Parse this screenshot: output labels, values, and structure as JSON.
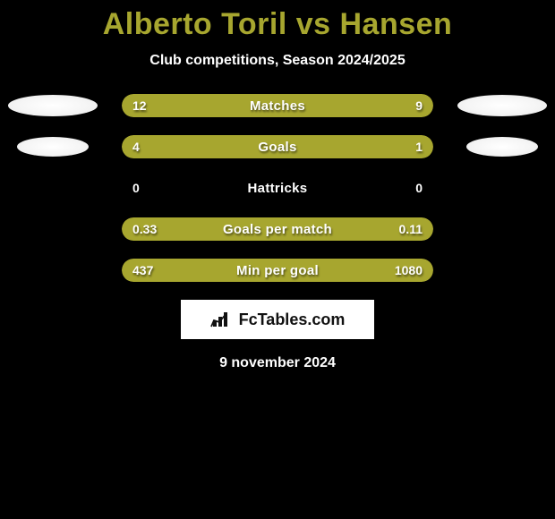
{
  "title": "Alberto Toril vs Hansen",
  "subtitle": "Club competitions, Season 2024/2025",
  "date": "9 november 2024",
  "brand": "FcTables.com",
  "colors": {
    "accent": "#a7a62f",
    "bg": "#000000",
    "text": "#ffffff"
  },
  "rows": [
    {
      "label": "Matches",
      "left_val": "12",
      "right_val": "9",
      "left_pct": 57,
      "right_pct": 43,
      "deco_left": true,
      "deco_right": true,
      "deco_size": "lg"
    },
    {
      "label": "Goals",
      "left_val": "4",
      "right_val": "1",
      "left_pct": 76,
      "right_pct": 24,
      "deco_left": true,
      "deco_right": true,
      "deco_size": "sm"
    },
    {
      "label": "Hattricks",
      "left_val": "0",
      "right_val": "0",
      "left_pct": 0,
      "right_pct": 0,
      "deco_left": false,
      "deco_right": false
    },
    {
      "label": "Goals per match",
      "left_val": "0.33",
      "right_val": "0.11",
      "left_pct": 69,
      "right_pct": 31,
      "deco_left": false,
      "deco_right": false
    },
    {
      "label": "Min per goal",
      "left_val": "437",
      "right_val": "1080",
      "left_pct": 32,
      "right_pct": 68,
      "deco_left": false,
      "deco_right": false
    }
  ]
}
